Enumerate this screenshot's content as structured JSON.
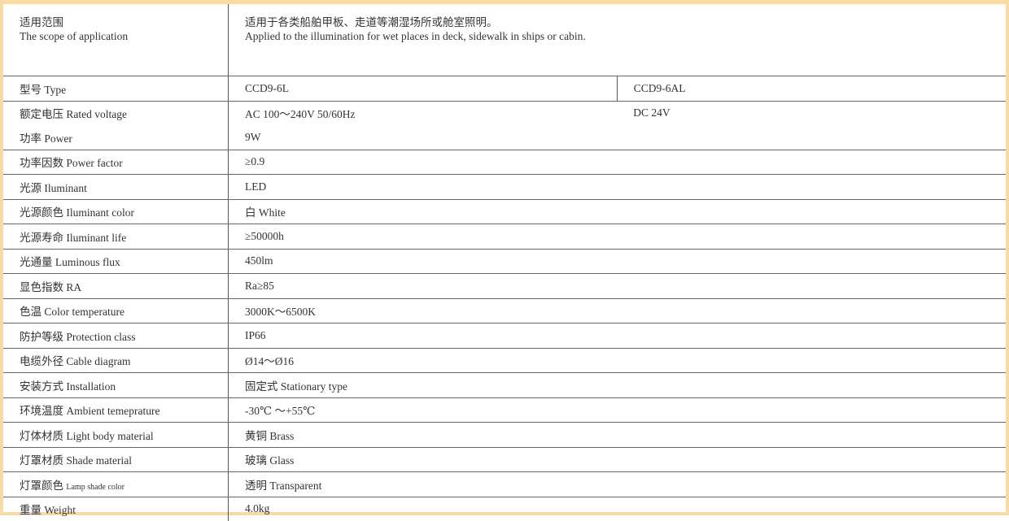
{
  "scope": {
    "label_cn": "适用范围",
    "label_en": "The scope of application",
    "value_cn": "适用于各类船舶甲板、走道等潮湿场所或舱室照明。",
    "value_en": "Applied to the illumination for wet places in deck, sidewalk in ships or cabin."
  },
  "type": {
    "label": "型号 Type",
    "value_a": "CCD9-6L",
    "value_b": "CCD9-6AL"
  },
  "voltage": {
    "label": "额定电压 Rated voltage",
    "value_a": "AC 100～240V 50/60Hz",
    "value_b": "DC 24V"
  },
  "rows": [
    {
      "label": "功率 Power",
      "value": "9W"
    },
    {
      "label": "功率因数 Power factor",
      "value": "≥0.9"
    },
    {
      "label": "光源 Iluminant",
      "value": "LED"
    },
    {
      "label": "光源颜色 Iluminant color",
      "value": "白 White"
    },
    {
      "label": "光源寿命 Iluminant life",
      "value": "≥50000h"
    },
    {
      "label": "光通量 Luminous flux",
      "value": "450lm"
    },
    {
      "label": "显色指数 RA",
      "value": "Ra≥85"
    },
    {
      "label": "色温 Color temperature",
      "value": "3000K～6500K"
    },
    {
      "label": "防护等级 Protection class",
      "value": "IP66"
    },
    {
      "label": "电缆外径 Cable diagram",
      "value": "Ø14～Ø16"
    },
    {
      "label": "安装方式 Installation",
      "value": "固定式 Stationary type"
    },
    {
      "label": "环境温度 Ambient temeprature",
      "value": "-30℃ ～+55℃"
    },
    {
      "label": "灯体材质 Light body material",
      "value": "黄铜 Brass"
    },
    {
      "label": "灯罩材质 Shade material",
      "value": "玻璃 Glass"
    },
    {
      "label_cn": "灯罩颜色",
      "label_en": "Lamp shade color",
      "value": "透明 Transparent"
    },
    {
      "label": "重量 Weight",
      "value": "4.0kg"
    }
  ],
  "colors": {
    "frame": "#f8d9a8"
  }
}
